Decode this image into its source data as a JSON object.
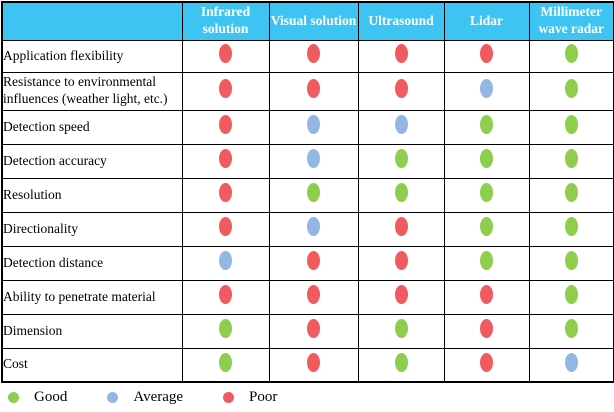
{
  "colors": {
    "good": "#8FCE4D",
    "average": "#94B6E3",
    "poor": "#F05B5F",
    "header_bg": "#3EC4F2",
    "header_text": "#FFFFFF",
    "border": "#000000"
  },
  "header": {
    "columns": [
      "Infrared solution",
      "Visual solution",
      "Ultrasound",
      "Lidar",
      "Millimeter wave radar"
    ]
  },
  "chart_data": {
    "type": "table",
    "title": "",
    "columns": [
      "Infrared solution",
      "Visual solution",
      "Ultrasound",
      "Lidar",
      "Millimeter wave radar"
    ],
    "rating_scale": [
      "good",
      "average",
      "poor"
    ],
    "rows": [
      {
        "label": "Application flexibility",
        "ratings": [
          "poor",
          "poor",
          "poor",
          "poor",
          "good"
        ]
      },
      {
        "label": "Resistance to environmental influences (weather light, etc.)",
        "ratings": [
          "poor",
          "poor",
          "poor",
          "average",
          "good"
        ]
      },
      {
        "label": "Detection speed",
        "ratings": [
          "poor",
          "average",
          "average",
          "good",
          "good"
        ]
      },
      {
        "label": "Detection accuracy",
        "ratings": [
          "poor",
          "average",
          "good",
          "good",
          "good"
        ]
      },
      {
        "label": "Resolution",
        "ratings": [
          "poor",
          "good",
          "good",
          "good",
          "good"
        ]
      },
      {
        "label": "Directionality",
        "ratings": [
          "poor",
          "average",
          "poor",
          "good",
          "good"
        ]
      },
      {
        "label": "Detection distance",
        "ratings": [
          "average",
          "poor",
          "poor",
          "good",
          "good"
        ]
      },
      {
        "label": "Ability to penetrate material",
        "ratings": [
          "poor",
          "poor",
          "poor",
          "poor",
          "good"
        ]
      },
      {
        "label": "Dimension",
        "ratings": [
          "good",
          "poor",
          "good",
          "poor",
          "good"
        ]
      },
      {
        "label": "Cost",
        "ratings": [
          "good",
          "poor",
          "good",
          "poor",
          "average"
        ]
      }
    ]
  },
  "legend": [
    {
      "label": "Good",
      "rating": "good"
    },
    {
      "label": "Average",
      "rating": "average"
    },
    {
      "label": "Poor",
      "rating": "poor"
    }
  ]
}
